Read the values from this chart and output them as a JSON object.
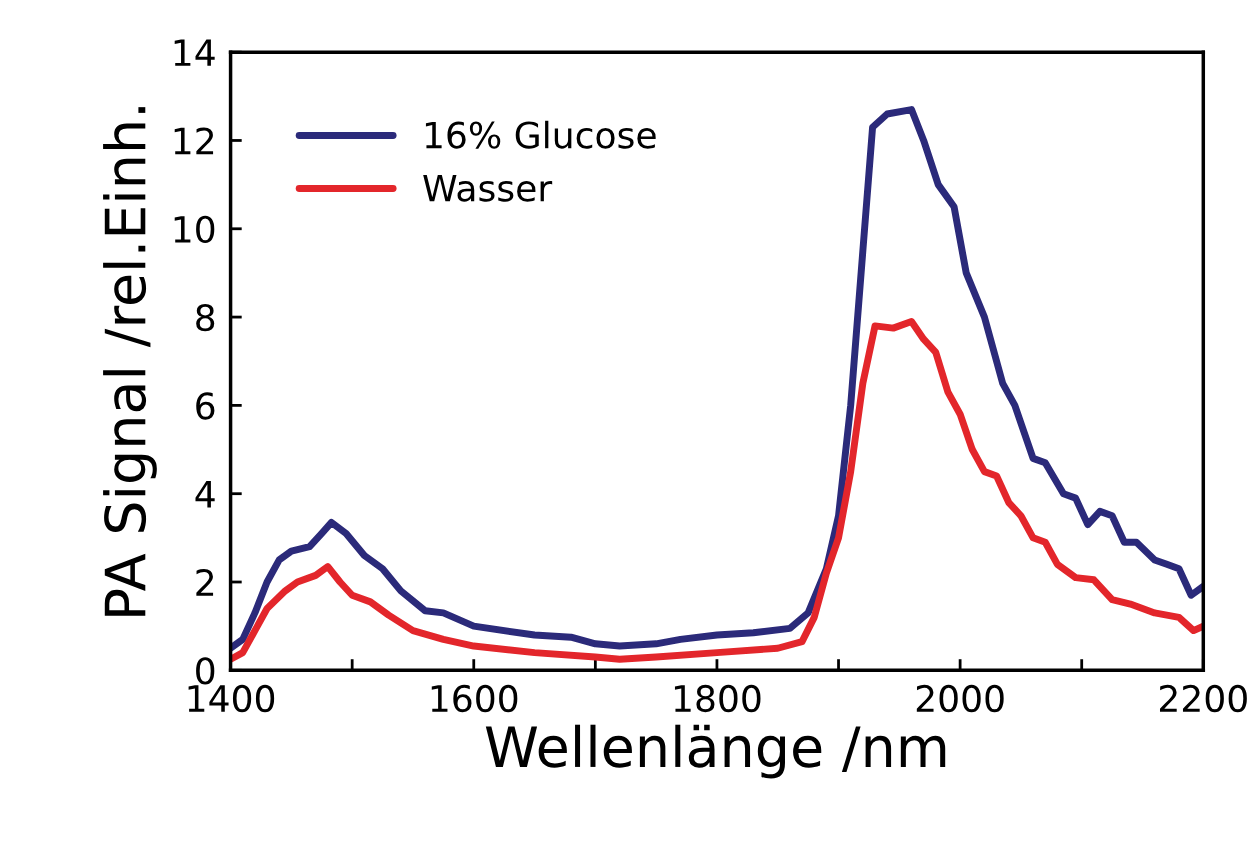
{
  "chart_data": {
    "type": "line",
    "xlabel": "Wellenlänge /nm",
    "ylabel": "PA Signal /rel.Einh.",
    "xlim": [
      1400,
      2200
    ],
    "ylim": [
      0,
      14
    ],
    "xticks": [
      1400,
      {
        "value": 1500,
        "label": null
      },
      1600,
      {
        "value": 1700,
        "label": null
      },
      1800,
      {
        "value": 1900,
        "label": null
      },
      2000,
      {
        "value": 2100,
        "label": null
      },
      2200
    ],
    "yticks": [
      0,
      2,
      4,
      6,
      8,
      10,
      12,
      14
    ],
    "grid": false,
    "legend": "top left",
    "marker": "none",
    "line_style": "solid",
    "series": [
      {
        "name": "16% Glucose",
        "color": "#2b2a7a",
        "x": [
          1400,
          1410,
          1420,
          1430,
          1440,
          1450,
          1465,
          1475,
          1483,
          1495,
          1510,
          1525,
          1540,
          1560,
          1575,
          1600,
          1650,
          1680,
          1700,
          1720,
          1750,
          1770,
          1800,
          1830,
          1860,
          1875,
          1890,
          1900,
          1910,
          1920,
          1928,
          1940,
          1960,
          1970,
          1982,
          1995,
          2005,
          2020,
          2035,
          2045,
          2060,
          2070,
          2085,
          2095,
          2105,
          2115,
          2125,
          2135,
          2145,
          2160,
          2170,
          2180,
          2190,
          2200
        ],
        "values": [
          0.5,
          0.7,
          1.3,
          2.0,
          2.5,
          2.7,
          2.8,
          3.1,
          3.35,
          3.1,
          2.6,
          2.3,
          1.8,
          1.35,
          1.3,
          1.0,
          0.8,
          0.75,
          0.6,
          0.55,
          0.6,
          0.7,
          0.8,
          0.85,
          0.95,
          1.3,
          2.3,
          3.5,
          6.0,
          9.5,
          12.3,
          12.6,
          12.7,
          12.0,
          11.0,
          10.5,
          9.0,
          8.0,
          6.5,
          6.0,
          4.8,
          4.7,
          4.0,
          3.9,
          3.3,
          3.6,
          3.5,
          2.9,
          2.9,
          2.5,
          2.4,
          2.3,
          1.7,
          1.9
        ]
      },
      {
        "name": "Wasser",
        "color": "#e3262b",
        "x": [
          1400,
          1410,
          1420,
          1430,
          1445,
          1455,
          1470,
          1480,
          1490,
          1500,
          1515,
          1530,
          1550,
          1575,
          1600,
          1650,
          1700,
          1720,
          1750,
          1800,
          1850,
          1870,
          1880,
          1890,
          1900,
          1910,
          1920,
          1930,
          1945,
          1960,
          1970,
          1980,
          1990,
          2000,
          2010,
          2020,
          2030,
          2040,
          2050,
          2060,
          2070,
          2080,
          2095,
          2110,
          2125,
          2140,
          2160,
          2180,
          2192,
          2200
        ],
        "values": [
          0.25,
          0.4,
          0.9,
          1.4,
          1.8,
          2.0,
          2.15,
          2.35,
          2.0,
          1.7,
          1.55,
          1.25,
          0.9,
          0.7,
          0.55,
          0.4,
          0.3,
          0.25,
          0.3,
          0.4,
          0.5,
          0.65,
          1.2,
          2.2,
          3.0,
          4.5,
          6.5,
          7.8,
          7.75,
          7.9,
          7.5,
          7.2,
          6.3,
          5.8,
          5.0,
          4.5,
          4.4,
          3.8,
          3.5,
          3.0,
          2.9,
          2.4,
          2.1,
          2.05,
          1.6,
          1.5,
          1.3,
          1.2,
          0.9,
          1.0
        ]
      }
    ]
  }
}
